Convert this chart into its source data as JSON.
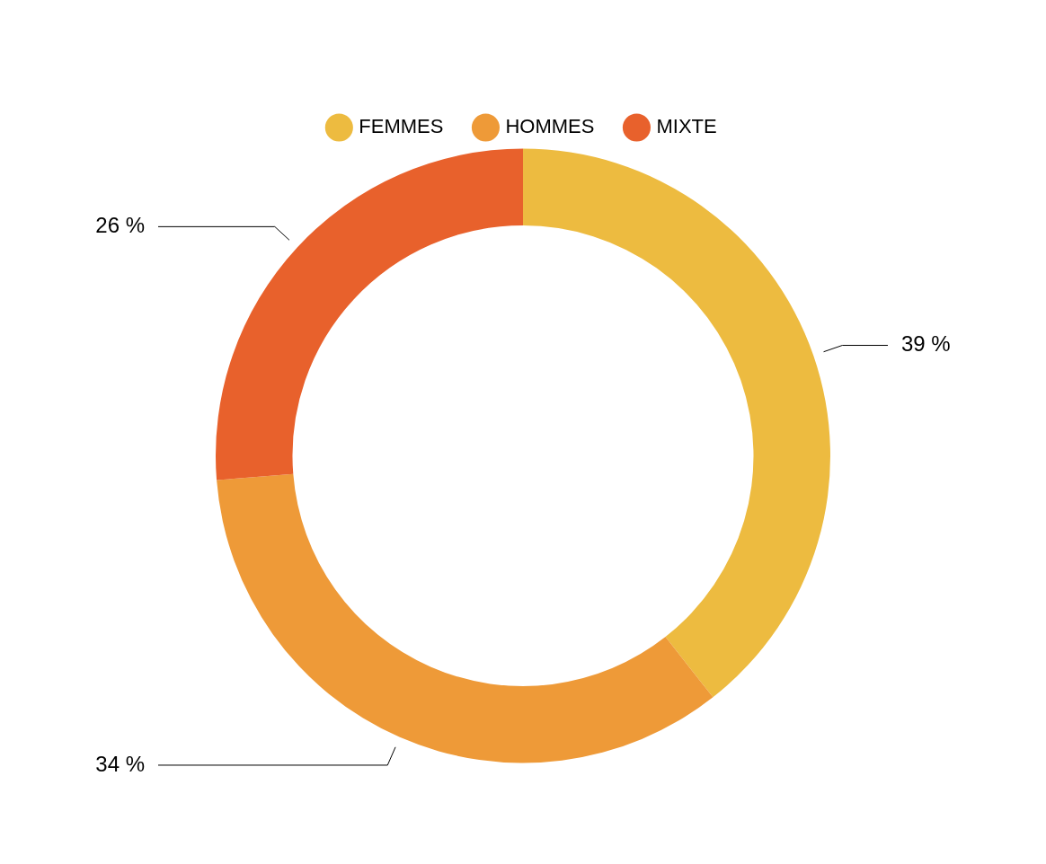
{
  "chart_data": {
    "type": "donut",
    "categories": [
      "FEMMES",
      "HOMMES",
      "MIXTE"
    ],
    "values": [
      39,
      34,
      26
    ],
    "colors": [
      "#edbb40",
      "#ee9a38",
      "#e8612c"
    ],
    "value_labels": [
      "39 %",
      "34 %",
      "26 %"
    ],
    "legend": "top"
  }
}
